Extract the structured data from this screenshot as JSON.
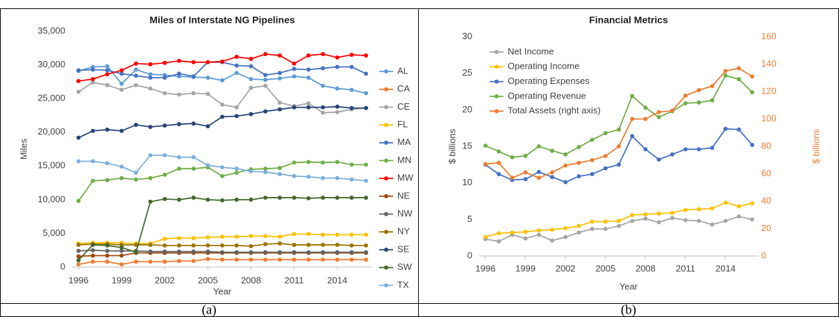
{
  "chart_data": [
    {
      "type": "line",
      "title": "Miles of Interstate NG Pipelines",
      "x_label": "Year",
      "y_label": "Miles",
      "x": [
        1996,
        1997,
        1998,
        1999,
        2000,
        2001,
        2002,
        2003,
        2004,
        2005,
        2006,
        2007,
        2008,
        2009,
        2010,
        2011,
        2012,
        2013,
        2014,
        2015,
        2016
      ],
      "xlim": [
        1996,
        2016
      ],
      "xticks": [
        1996,
        1999,
        2002,
        2005,
        2008,
        2011,
        2014
      ],
      "ylim": [
        0,
        35000
      ],
      "yticks": [
        0,
        {
          "value": 5000,
          "label": "5,000"
        },
        {
          "value": 10000,
          "label": "10,000"
        },
        {
          "value": 15000,
          "label": "15,000"
        },
        {
          "value": 20000,
          "label": "20,000"
        },
        {
          "value": 25000,
          "label": "25,000"
        },
        {
          "value": 30000,
          "label": "30,000"
        },
        {
          "value": 35000,
          "label": "35,000"
        }
      ],
      "legend": "right",
      "series": [
        {
          "name": "AL",
          "color": "#5B9BD5",
          "values": [
            29100,
            29700,
            29800,
            27200,
            29300,
            28600,
            28500,
            28300,
            28200,
            28100,
            27700,
            28800,
            27900,
            27800,
            28000,
            28300,
            28100,
            26900,
            26500,
            26300,
            25800
          ]
        },
        {
          "name": "CA",
          "color": "#ED7D31",
          "values": [
            400,
            800,
            800,
            400,
            800,
            800,
            800,
            900,
            900,
            1200,
            1100,
            1100,
            1100,
            1100,
            1100,
            1100,
            1100,
            1100,
            1100,
            1100,
            1100
          ]
        },
        {
          "name": "CE",
          "color": "#A5A5A5",
          "values": [
            26000,
            27400,
            27000,
            26300,
            27000,
            26500,
            25800,
            25600,
            25800,
            25700,
            24100,
            23700,
            26600,
            26900,
            24400,
            23900,
            24300,
            22900,
            23000,
            23400,
            23600
          ]
        },
        {
          "name": "FL",
          "color": "#FFC000",
          "values": [
            3500,
            3600,
            3600,
            3600,
            3500,
            3500,
            4200,
            4300,
            4300,
            4400,
            4500,
            4500,
            4600,
            4600,
            4500,
            4900,
            4900,
            4800,
            4800,
            4800,
            4800
          ]
        },
        {
          "name": "MA",
          "color": "#4472C4",
          "values": [
            29200,
            29300,
            29200,
            28700,
            28400,
            28100,
            28100,
            28700,
            28300,
            30400,
            30400,
            29900,
            29800,
            28500,
            28800,
            29400,
            29300,
            29500,
            29700,
            29700,
            28700
          ]
        },
        {
          "name": "MN",
          "color": "#70AD47",
          "values": [
            9800,
            12800,
            12900,
            13200,
            13000,
            13200,
            13700,
            14600,
            14600,
            14800,
            13500,
            14000,
            14500,
            14600,
            14700,
            15500,
            15600,
            15500,
            15600,
            15200,
            15200
          ]
        },
        {
          "name": "MW",
          "color": "#FF0000",
          "values": [
            27600,
            27900,
            28600,
            29200,
            30200,
            30100,
            30300,
            30600,
            30400,
            30400,
            30500,
            31200,
            30900,
            31600,
            31400,
            30200,
            31400,
            31600,
            31100,
            31500,
            31400
          ]
        },
        {
          "name": "NE",
          "color": "#9E480E",
          "values": [
            1600,
            1700,
            1700,
            1700,
            2100,
            2100,
            2100,
            2100,
            2100,
            2100,
            2100,
            2100,
            2100,
            2100,
            2100,
            2100,
            2100,
            2100,
            2100,
            2100,
            2100
          ]
        },
        {
          "name": "NW",
          "color": "#636363",
          "values": [
            2400,
            2500,
            2400,
            2400,
            2400,
            2300,
            2300,
            2300,
            2300,
            2300,
            2200,
            2200,
            2200,
            2200,
            2200,
            2200,
            2200,
            2200,
            2200,
            2200,
            2200
          ]
        },
        {
          "name": "NY",
          "color": "#997300",
          "values": [
            3300,
            3400,
            3400,
            3300,
            3300,
            3300,
            3200,
            3200,
            3200,
            3200,
            3200,
            3200,
            3100,
            3400,
            3500,
            3300,
            3300,
            3300,
            3300,
            3200,
            3200
          ]
        },
        {
          "name": "SE",
          "color": "#264478",
          "values": [
            19200,
            20200,
            20400,
            20200,
            21100,
            20800,
            21000,
            21200,
            21300,
            20900,
            22300,
            22400,
            22700,
            23100,
            23400,
            23700,
            23700,
            23700,
            23800,
            23600,
            23600
          ]
        },
        {
          "name": "SW",
          "color": "#43682B",
          "values": [
            1000,
            3300,
            3200,
            2900,
            2200,
            9700,
            10100,
            10000,
            10300,
            10000,
            9900,
            10000,
            10000,
            10300,
            10300,
            10300,
            10200,
            10300,
            10300,
            10300,
            10300
          ]
        },
        {
          "name": "TX",
          "color": "#7CAFDD",
          "values": [
            15700,
            15700,
            15400,
            14900,
            14000,
            16600,
            16600,
            16300,
            16300,
            15100,
            14800,
            14600,
            14200,
            14100,
            13800,
            13500,
            13400,
            13200,
            13200,
            13000,
            12800
          ]
        }
      ]
    },
    {
      "type": "line",
      "title": "Financial Metrics",
      "x_label": "Year",
      "y_label": "$ billions",
      "y2_label": "$ billions",
      "x": [
        1996,
        1997,
        1998,
        1999,
        2000,
        2001,
        2002,
        2003,
        2004,
        2005,
        2006,
        2007,
        2008,
        2009,
        2010,
        2011,
        2012,
        2013,
        2014,
        2015,
        2016
      ],
      "xlim": [
        1996,
        2016
      ],
      "xticks": [
        1996,
        1999,
        2002,
        2005,
        2008,
        2011,
        2014
      ],
      "ylim": [
        0,
        30
      ],
      "yticks": [
        0,
        5,
        10,
        15,
        20,
        25,
        30
      ],
      "y2lim": [
        0,
        160
      ],
      "y2ticks": [
        0,
        20,
        40,
        60,
        80,
        100,
        120,
        140,
        160
      ],
      "y2_color": "#ED7D31",
      "legend": "upper left",
      "series": [
        {
          "name": "Net Income",
          "color": "#A5A5A5",
          "values": [
            2.3,
            2.0,
            2.9,
            2.4,
            2.9,
            2.1,
            2.6,
            3.2,
            3.7,
            3.7,
            4.1,
            4.8,
            5.1,
            4.6,
            5.2,
            4.9,
            4.8,
            4.3,
            4.8,
            5.4,
            5.0
          ]
        },
        {
          "name": "Operating Income",
          "color": "#FFC000",
          "values": [
            2.6,
            3.1,
            3.2,
            3.3,
            3.5,
            3.6,
            3.8,
            4.1,
            4.7,
            4.7,
            4.8,
            5.6,
            5.7,
            5.8,
            5.9,
            6.3,
            6.4,
            6.5,
            7.3,
            6.8,
            7.2
          ]
        },
        {
          "name": "Operating Expenses",
          "color": "#4472C4",
          "values": [
            12.5,
            11.2,
            10.4,
            10.5,
            11.5,
            10.8,
            10.1,
            10.9,
            11.2,
            12.0,
            12.5,
            16.4,
            14.6,
            13.2,
            13.9,
            14.6,
            14.6,
            14.8,
            17.4,
            17.3,
            15.2
          ]
        },
        {
          "name": "Operating Revenue",
          "color": "#70AD47",
          "values": [
            15.1,
            14.3,
            13.5,
            13.7,
            15.0,
            14.4,
            13.9,
            14.9,
            15.9,
            16.8,
            17.3,
            21.9,
            20.3,
            19.0,
            19.8,
            20.9,
            21.0,
            21.3,
            24.7,
            24.2,
            22.4
          ]
        },
        {
          "name": "Total Assets (right axis)",
          "color": "#ED7D31",
          "axis": "y2",
          "values": [
            67,
            68,
            57,
            61,
            57,
            61,
            66,
            68,
            70,
            73,
            80,
            100,
            100,
            105,
            106,
            117,
            121,
            124,
            135,
            137,
            131
          ]
        }
      ]
    }
  ],
  "captions": [
    "(a)",
    "(b)"
  ]
}
